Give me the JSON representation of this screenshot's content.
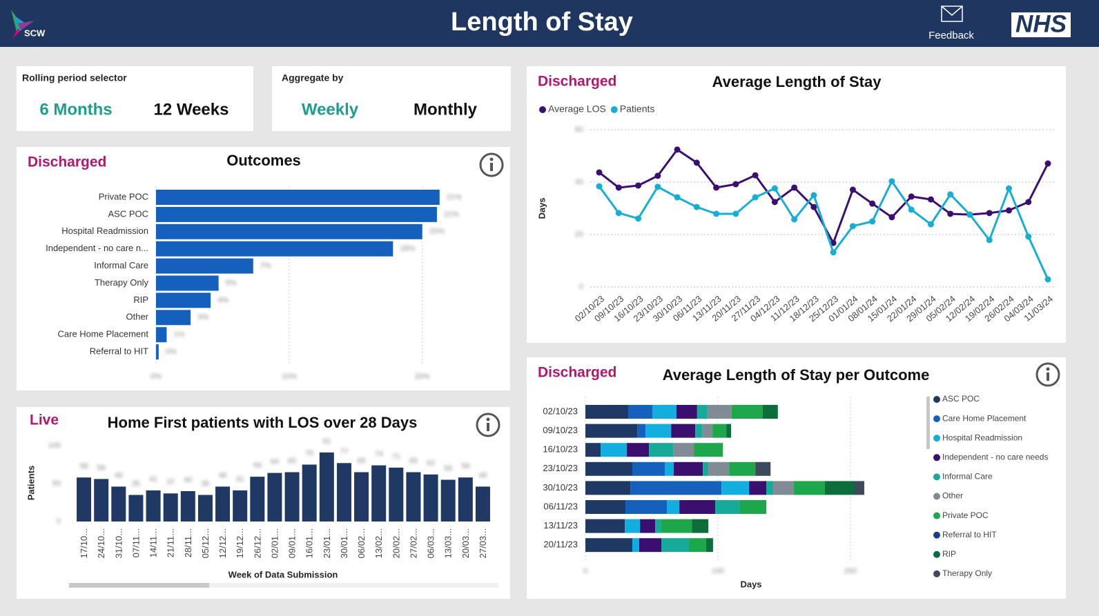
{
  "header": {
    "title": "Length of Stay",
    "logo_text": "SCW",
    "feedback": "Feedback",
    "nhs": "NHS"
  },
  "period_selector": {
    "label": "Rolling period selector",
    "options": [
      "6 Months",
      "12 Weeks"
    ],
    "selected": 0
  },
  "aggregate_selector": {
    "label": "Aggregate by",
    "options": [
      "Weekly",
      "Monthly"
    ],
    "selected": 0
  },
  "chart_data": [
    {
      "type": "hbar",
      "tag": "Discharged",
      "title": "Outcomes",
      "categories": [
        "Private POC",
        "ASC POC",
        "Hospital Readmission",
        "Independent - no care n...",
        "Informal Care",
        "Therapy Only",
        "RIP",
        "Other",
        "Care Home Placement",
        "Referral to HIT"
      ],
      "values": [
        21.3,
        21.1,
        20.0,
        17.8,
        7.3,
        4.7,
        4.1,
        2.6,
        0.8,
        0.2
      ],
      "value_labels": [
        "21%",
        "21%",
        "20%",
        "18%",
        "7%",
        "5%",
        "4%",
        "3%",
        "1%",
        "0%"
      ],
      "color": "#1560bd",
      "xlim": [
        0,
        22.4
      ],
      "xticks": [
        {
          "value": 0,
          "label": "0%"
        },
        {
          "value": 10,
          "label": "10%"
        },
        {
          "value": 20,
          "label": "20%"
        }
      ],
      "grid": true
    },
    {
      "type": "line",
      "tag": "Discharged",
      "title": "Average Length of Stay",
      "y_label": "Days",
      "x": [
        "02/10/23",
        "09/10/23",
        "16/10/23",
        "23/10/23",
        "30/10/23",
        "06/11/23",
        "13/11/23",
        "20/11/23",
        "27/11/23",
        "04/12/23",
        "11/12/23",
        "18/12/23",
        "25/12/23",
        "01/01/24",
        "08/01/24",
        "15/01/24",
        "22/01/24",
        "29/01/24",
        "05/02/24",
        "12/02/24",
        "19/02/24",
        "26/02/24",
        "04/03/24",
        "11/03/24"
      ],
      "series": [
        {
          "name": "Average LOS",
          "color": "#3b0f70",
          "values": [
            43.7,
            37.9,
            38.7,
            42.4,
            52.4,
            47.4,
            37.9,
            39.2,
            42.6,
            32.4,
            37.9,
            30.5,
            16.8,
            37.1,
            31.8,
            26.6,
            34.5,
            33.4,
            27.9,
            27.6,
            28.2,
            29.2,
            32.4,
            47.1
          ]
        },
        {
          "name": "Patients",
          "color": "#16aed3",
          "values": [
            38.4,
            28.2,
            26.1,
            38.2,
            34.2,
            30.5,
            27.9,
            27.9,
            34.2,
            37.6,
            25.8,
            35.0,
            13.2,
            23.2,
            25.0,
            40.3,
            29.5,
            23.9,
            35.3,
            27.6,
            17.9,
            37.6,
            19.2,
            2.9
          ]
        }
      ],
      "ylim": [
        0,
        60
      ],
      "yticks": [
        0,
        20,
        40,
        60
      ],
      "grid": true,
      "legend": "top-left"
    },
    {
      "type": "bar",
      "tag": "Live",
      "title": "Home First patients with LOS over 28 Days",
      "y_label": "Patients",
      "x_label": "Week of Data Submission",
      "categories": [
        "17/10...",
        "24/10...",
        "31/10...",
        "07/11...",
        "14/11...",
        "21/11...",
        "28/11...",
        "05/12...",
        "12/12...",
        "19/12...",
        "26/12...",
        "02/01...",
        "09/01...",
        "16/01...",
        "23/01...",
        "30/01...",
        "06/02...",
        "13/02...",
        "20/02...",
        "27/02...",
        "06/03...",
        "13/03...",
        "20/03...",
        "27/03..."
      ],
      "values": [
        58,
        56,
        46,
        35,
        41,
        37,
        40,
        35,
        46,
        41,
        59,
        64,
        65,
        75,
        91,
        77,
        65,
        74,
        71,
        65,
        62,
        55,
        58,
        46
      ],
      "color": "#1f3864",
      "ylim": [
        0,
        100
      ],
      "yticks": [
        0,
        50,
        100
      ]
    },
    {
      "type": "stacked_hbar",
      "tag": "Discharged",
      "title": "Average Length of Stay per Outcome",
      "x_label": "Days",
      "categories": [
        "02/10/23",
        "09/10/23",
        "16/10/23",
        "23/10/23",
        "30/10/23",
        "06/11/23",
        "13/11/23",
        "20/11/23"
      ],
      "series": [
        {
          "name": "ASC POC",
          "color": "#1f3864",
          "values": [
            32.3,
            39.1,
            11.5,
            35.4,
            33.9,
            30.2,
            29.7,
            35.4
          ]
        },
        {
          "name": "Care Home Placement",
          "color": "#1560bd",
          "values": [
            18.2,
            6.3,
            0,
            24.5,
            68.8,
            31.3,
            0,
            0
          ]
        },
        {
          "name": "Hospital Readmission",
          "color": "#13aee0",
          "values": [
            18.2,
            19.3,
            19.8,
            6.8,
            20.8,
            9.4,
            11.5,
            5.2
          ]
        },
        {
          "name": "Independent - no care needs",
          "color": "#3b0f70",
          "values": [
            15.6,
            18.2,
            16.7,
            21.9,
            13.0,
            27.1,
            11.5,
            16.7
          ]
        },
        {
          "name": "Informal Care",
          "color": "#17a99a",
          "values": [
            7.8,
            5.2,
            18.2,
            4.2,
            5.2,
            18.2,
            4.2,
            20.8
          ]
        },
        {
          "name": "Other",
          "color": "#808b96",
          "values": [
            18.2,
            7.8,
            15.6,
            15.6,
            15.6,
            0,
            0,
            0
          ]
        },
        {
          "name": "Private POC",
          "color": "#1ea64a",
          "values": [
            23.4,
            10.4,
            21.9,
            19.8,
            23.4,
            20.3,
            23.4,
            13.0
          ]
        },
        {
          "name": "Referral to HIT",
          "color": "#1a3e8c",
          "values": [
            0,
            0,
            0,
            0,
            0,
            0,
            0,
            0
          ]
        },
        {
          "name": "RIP",
          "color": "#0b6e3b",
          "values": [
            11.5,
            3.6,
            0,
            0,
            21.9,
            0,
            12.5,
            5.2
          ]
        },
        {
          "name": "Therapy Only",
          "color": "#3d4a5c",
          "values": [
            0,
            0,
            0,
            11.5,
            7.8,
            0,
            0,
            0
          ]
        }
      ],
      "xlim": [
        0,
        220
      ],
      "xticks": [
        0,
        100,
        200
      ],
      "grid": true,
      "legend": "right"
    }
  ]
}
